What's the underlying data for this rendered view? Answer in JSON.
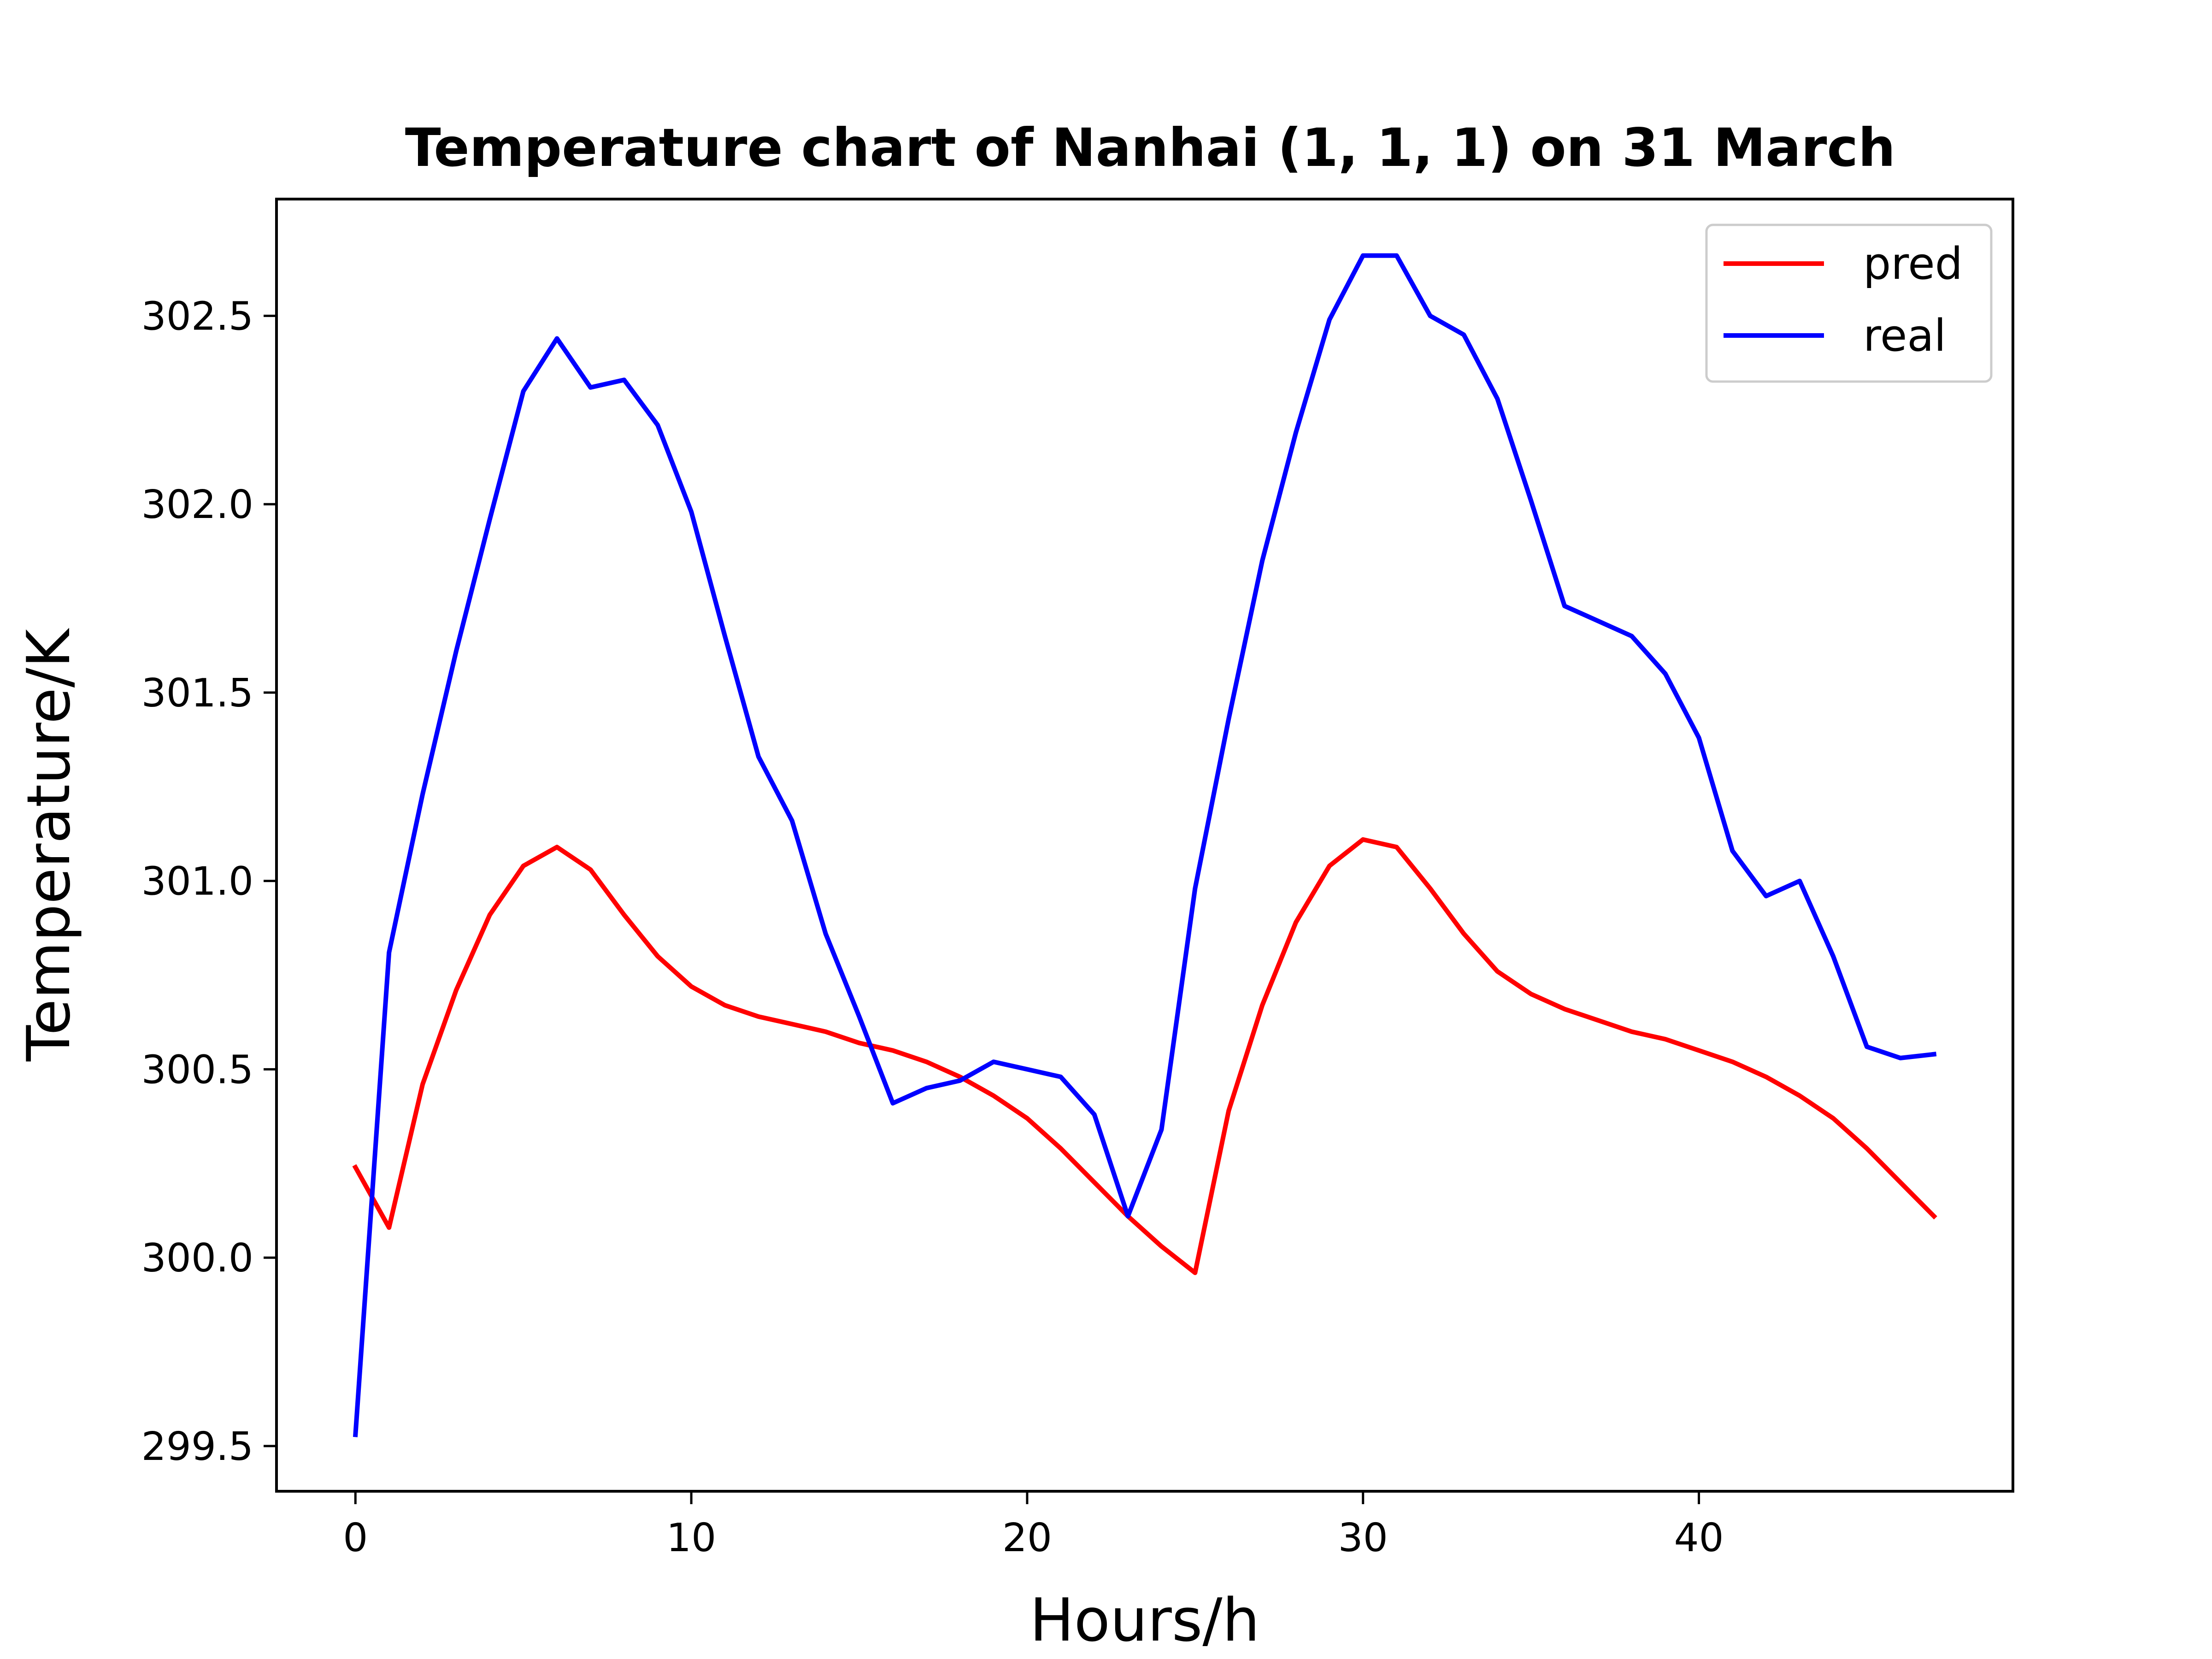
{
  "chart_data": {
    "type": "line",
    "title": "Temperature chart of Nanhai (1, 1, 1) on 31 March",
    "xlabel": "Hours/h",
    "ylabel": "Temperature/K",
    "xlim": [
      -2.35,
      49.35
    ],
    "ylim": [
      299.38,
      302.81
    ],
    "x_ticks": [
      0,
      10,
      20,
      30,
      40
    ],
    "x_tick_labels": [
      "0",
      "10",
      "20",
      "30",
      "40"
    ],
    "y_ticks": [
      299.5,
      300.0,
      300.5,
      301.0,
      301.5,
      302.0,
      302.5
    ],
    "y_tick_labels": [
      "299.5",
      "300.0",
      "300.5",
      "301.0",
      "301.5",
      "302.0",
      "302.5"
    ],
    "grid": false,
    "legend_position": "top-right",
    "x": [
      0,
      1,
      2,
      3,
      4,
      5,
      6,
      7,
      8,
      9,
      10,
      11,
      12,
      13,
      14,
      15,
      16,
      17,
      18,
      19,
      20,
      21,
      22,
      23,
      24,
      25,
      26,
      27,
      28,
      29,
      30,
      31,
      32,
      33,
      34,
      35,
      36,
      37,
      38,
      39,
      40,
      41,
      42,
      43,
      44,
      45,
      46,
      47
    ],
    "series": [
      {
        "name": "pred",
        "color": "#ff0000",
        "values": [
          300.24,
          300.08,
          300.46,
          300.71,
          300.91,
          301.04,
          301.09,
          301.03,
          300.91,
          300.8,
          300.72,
          300.67,
          300.64,
          300.62,
          300.6,
          300.57,
          300.55,
          300.52,
          300.48,
          300.43,
          300.37,
          300.29,
          300.2,
          300.11,
          300.03,
          299.96,
          300.39,
          300.67,
          300.89,
          301.04,
          301.11,
          301.09,
          300.98,
          300.86,
          300.76,
          300.7,
          300.66,
          300.63,
          300.6,
          300.58,
          300.55,
          300.52,
          300.48,
          300.43,
          300.37,
          300.29,
          300.2,
          300.11
        ]
      },
      {
        "name": "real",
        "color": "#0000ff",
        "values": [
          299.53,
          300.81,
          301.23,
          301.61,
          301.96,
          302.3,
          302.44,
          302.31,
          302.33,
          302.21,
          301.98,
          301.65,
          301.33,
          301.16,
          300.86,
          300.64,
          300.41,
          300.45,
          300.47,
          300.52,
          300.5,
          300.48,
          300.38,
          300.11,
          300.34,
          300.98,
          301.43,
          301.85,
          302.19,
          302.49,
          302.66,
          302.66,
          302.5,
          302.45,
          302.28,
          302.01,
          301.73,
          301.69,
          301.65,
          301.55,
          301.38,
          301.08,
          300.96,
          301.0,
          300.8,
          300.56,
          300.53,
          300.54
        ]
      }
    ]
  }
}
